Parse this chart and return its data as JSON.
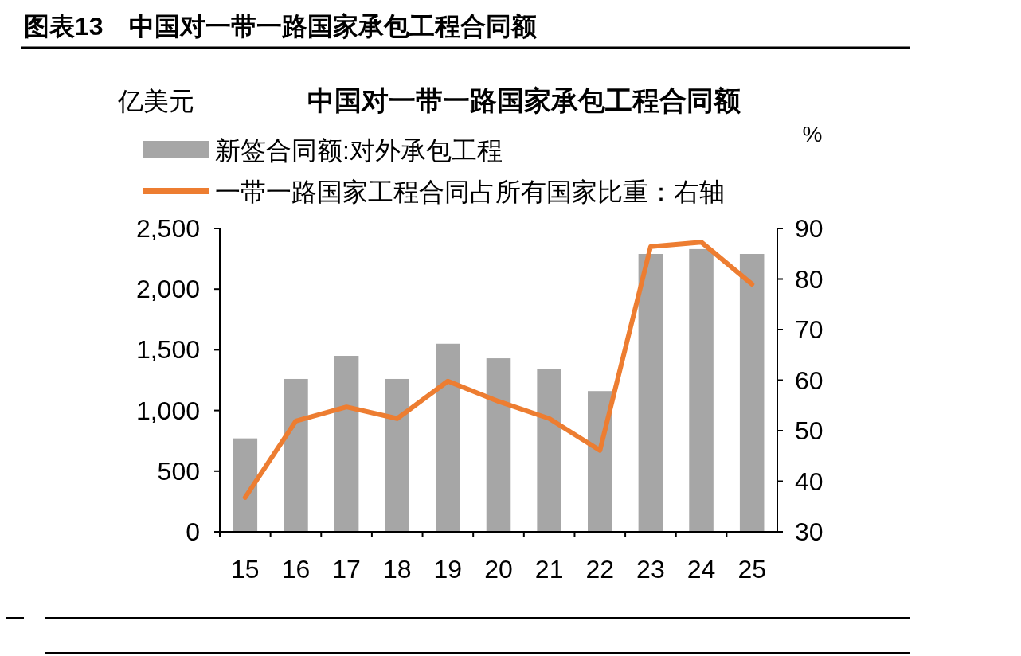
{
  "chart_data": {
    "type": "bar",
    "title": "图表13　中国对一带一路国家承包工程合同额",
    "subtitle": "中国对一带一路国家承包工程合同额",
    "ylabel": "亿美元",
    "y2label": "%",
    "categories": [
      "15",
      "16",
      "17",
      "18",
      "19",
      "20",
      "21",
      "22",
      "23",
      "24",
      "25"
    ],
    "series": [
      {
        "name": "新签合同额:对外承包工程",
        "color": "#a6a6a6",
        "values": [
          770,
          1260,
          1450,
          1260,
          1550,
          1430,
          1345,
          1160,
          2290,
          2330,
          2290
        ]
      },
      {
        "name": "一带一路国家工程合同占所有国家比重：右轴",
        "type": "line",
        "axis": "y2",
        "color": "#ed7d31",
        "values": [
          36.8,
          51.9,
          54.7,
          52.4,
          59.8,
          55.8,
          52.4,
          46.1,
          86.4,
          87.3,
          79.0
        ]
      }
    ],
    "ylim": [
      0,
      2500
    ],
    "yticks": [
      {
        "value": 0,
        "label": "0"
      },
      {
        "value": 500,
        "label": "500"
      },
      {
        "value": 1000,
        "label": "1,000"
      },
      {
        "value": 1500,
        "label": "1,500"
      },
      {
        "value": 2000,
        "label": "2,000"
      },
      {
        "value": 2500,
        "label": "2,500"
      }
    ],
    "y2lim": [
      30,
      90
    ],
    "y2ticks": [
      30,
      40,
      50,
      60,
      70,
      80,
      90
    ],
    "legend": "top",
    "grid": false,
    "marker": "none",
    "line_style": "solid"
  }
}
